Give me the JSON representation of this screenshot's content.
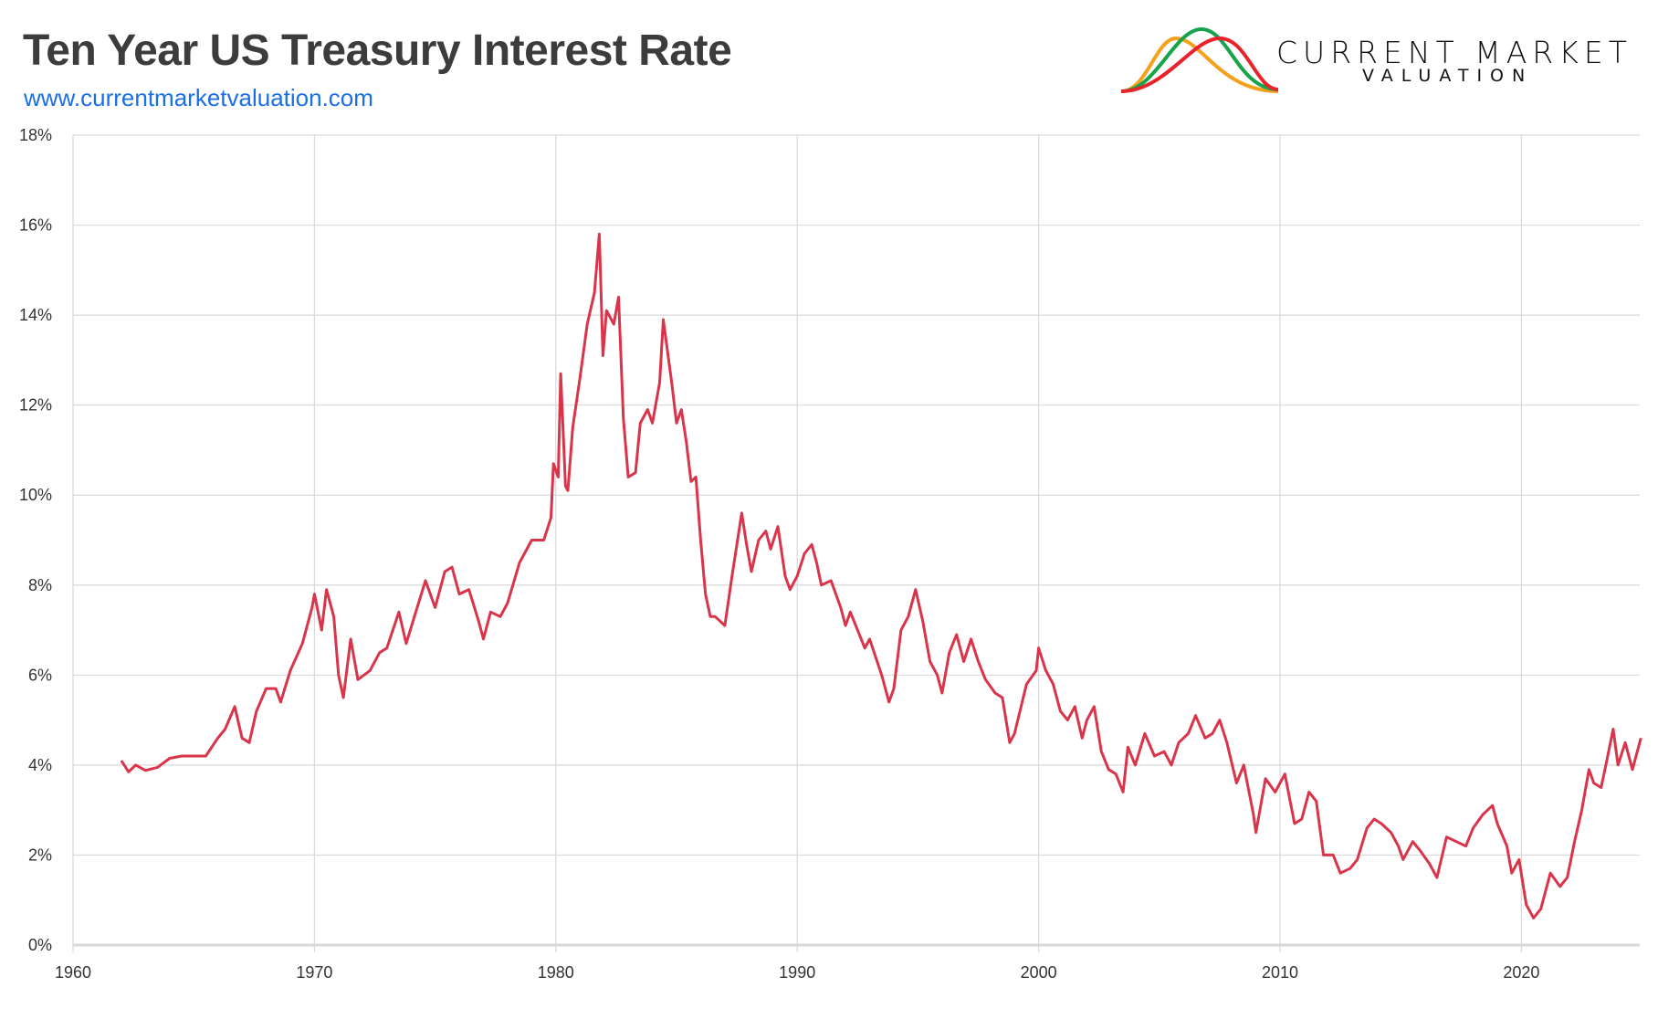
{
  "header": {
    "title": "Ten Year US Treasury Interest Rate",
    "url": "www.currentmarketvaluation.com"
  },
  "logo": {
    "name": "CURRENT MARKET",
    "subtitle": "VALUATION",
    "curve_colors": [
      "#f5a11c",
      "#16a34a",
      "#e8232b"
    ]
  },
  "chart_data": {
    "type": "line",
    "title": "Ten Year US Treasury Interest Rate",
    "xlabel": "",
    "ylabel": "",
    "xlim": [
      1960,
      2025
    ],
    "ylim": [
      0,
      18
    ],
    "x_ticks": [
      "1960",
      "1970",
      "1980",
      "1990",
      "2000",
      "2010",
      "2020"
    ],
    "y_ticks": [
      "0%",
      "2%",
      "4%",
      "6%",
      "8%",
      "10%",
      "12%",
      "14%",
      "16%",
      "18%"
    ],
    "grid": true,
    "legend": "none",
    "line_color": "#d9344a",
    "series": [
      {
        "points": [
          [
            1962.0,
            4.1
          ],
          [
            1962.3,
            3.85
          ],
          [
            1962.6,
            4.0
          ],
          [
            1963.0,
            3.88
          ],
          [
            1963.5,
            3.95
          ],
          [
            1964.0,
            4.15
          ],
          [
            1964.5,
            4.2
          ],
          [
            1965.0,
            4.2
          ],
          [
            1965.5,
            4.2
          ],
          [
            1966.0,
            4.6
          ],
          [
            1966.3,
            4.8
          ],
          [
            1966.7,
            5.3
          ],
          [
            1967.0,
            4.6
          ],
          [
            1967.3,
            4.5
          ],
          [
            1967.6,
            5.2
          ],
          [
            1968.0,
            5.7
          ],
          [
            1968.4,
            5.7
          ],
          [
            1968.6,
            5.4
          ],
          [
            1969.0,
            6.1
          ],
          [
            1969.5,
            6.7
          ],
          [
            1969.9,
            7.5
          ],
          [
            1970.0,
            7.8
          ],
          [
            1970.3,
            7.0
          ],
          [
            1970.5,
            7.9
          ],
          [
            1970.8,
            7.3
          ],
          [
            1971.0,
            6.0
          ],
          [
            1971.2,
            5.5
          ],
          [
            1971.5,
            6.8
          ],
          [
            1971.8,
            5.9
          ],
          [
            1972.3,
            6.1
          ],
          [
            1972.7,
            6.5
          ],
          [
            1973.0,
            6.6
          ],
          [
            1973.5,
            7.4
          ],
          [
            1973.8,
            6.7
          ],
          [
            1974.2,
            7.4
          ],
          [
            1974.6,
            8.1
          ],
          [
            1975.0,
            7.5
          ],
          [
            1975.4,
            8.3
          ],
          [
            1975.7,
            8.4
          ],
          [
            1976.0,
            7.8
          ],
          [
            1976.4,
            7.9
          ],
          [
            1976.8,
            7.2
          ],
          [
            1977.0,
            6.8
          ],
          [
            1977.3,
            7.4
          ],
          [
            1977.7,
            7.3
          ],
          [
            1978.0,
            7.6
          ],
          [
            1978.5,
            8.5
          ],
          [
            1979.0,
            9.0
          ],
          [
            1979.5,
            9.0
          ],
          [
            1979.8,
            9.5
          ],
          [
            1979.9,
            10.7
          ],
          [
            1980.1,
            10.4
          ],
          [
            1980.2,
            12.7
          ],
          [
            1980.4,
            10.2
          ],
          [
            1980.5,
            10.1
          ],
          [
            1980.7,
            11.5
          ],
          [
            1981.0,
            12.6
          ],
          [
            1981.3,
            13.8
          ],
          [
            1981.6,
            14.5
          ],
          [
            1981.8,
            15.8
          ],
          [
            1981.95,
            13.1
          ],
          [
            1982.1,
            14.1
          ],
          [
            1982.4,
            13.8
          ],
          [
            1982.6,
            14.4
          ],
          [
            1982.8,
            11.7
          ],
          [
            1983.0,
            10.4
          ],
          [
            1983.3,
            10.5
          ],
          [
            1983.5,
            11.6
          ],
          [
            1983.8,
            11.9
          ],
          [
            1984.0,
            11.6
          ],
          [
            1984.3,
            12.5
          ],
          [
            1984.45,
            13.9
          ],
          [
            1984.8,
            12.5
          ],
          [
            1985.0,
            11.6
          ],
          [
            1985.2,
            11.9
          ],
          [
            1985.4,
            11.2
          ],
          [
            1985.6,
            10.3
          ],
          [
            1985.8,
            10.4
          ],
          [
            1986.0,
            9.0
          ],
          [
            1986.2,
            7.8
          ],
          [
            1986.4,
            7.3
          ],
          [
            1986.6,
            7.3
          ],
          [
            1986.8,
            7.2
          ],
          [
            1987.0,
            7.1
          ],
          [
            1987.3,
            8.2
          ],
          [
            1987.7,
            9.6
          ],
          [
            1987.9,
            8.9
          ],
          [
            1988.1,
            8.3
          ],
          [
            1988.4,
            9.0
          ],
          [
            1988.7,
            9.2
          ],
          [
            1988.9,
            8.8
          ],
          [
            1989.2,
            9.3
          ],
          [
            1989.5,
            8.2
          ],
          [
            1989.7,
            7.9
          ],
          [
            1990.0,
            8.2
          ],
          [
            1990.3,
            8.7
          ],
          [
            1990.6,
            8.9
          ],
          [
            1990.8,
            8.5
          ],
          [
            1991.0,
            8.0
          ],
          [
            1991.4,
            8.1
          ],
          [
            1991.8,
            7.5
          ],
          [
            1992.0,
            7.1
          ],
          [
            1992.2,
            7.4
          ],
          [
            1992.5,
            7.0
          ],
          [
            1992.8,
            6.6
          ],
          [
            1993.0,
            6.8
          ],
          [
            1993.5,
            6.0
          ],
          [
            1993.8,
            5.4
          ],
          [
            1994.0,
            5.7
          ],
          [
            1994.3,
            7.0
          ],
          [
            1994.6,
            7.3
          ],
          [
            1994.9,
            7.9
          ],
          [
            1995.2,
            7.2
          ],
          [
            1995.5,
            6.3
          ],
          [
            1995.8,
            6.0
          ],
          [
            1996.0,
            5.6
          ],
          [
            1996.3,
            6.5
          ],
          [
            1996.6,
            6.9
          ],
          [
            1996.9,
            6.3
          ],
          [
            1997.2,
            6.8
          ],
          [
            1997.5,
            6.3
          ],
          [
            1997.8,
            5.9
          ],
          [
            1998.2,
            5.6
          ],
          [
            1998.5,
            5.5
          ],
          [
            1998.8,
            4.5
          ],
          [
            1999.0,
            4.7
          ],
          [
            1999.5,
            5.8
          ],
          [
            1999.9,
            6.1
          ],
          [
            2000.0,
            6.6
          ],
          [
            2000.3,
            6.1
          ],
          [
            2000.6,
            5.8
          ],
          [
            2000.9,
            5.2
          ],
          [
            2001.2,
            5.0
          ],
          [
            2001.5,
            5.3
          ],
          [
            2001.8,
            4.6
          ],
          [
            2002.0,
            5.0
          ],
          [
            2002.3,
            5.3
          ],
          [
            2002.6,
            4.3
          ],
          [
            2002.9,
            3.9
          ],
          [
            2003.2,
            3.8
          ],
          [
            2003.5,
            3.4
          ],
          [
            2003.7,
            4.4
          ],
          [
            2004.0,
            4.0
          ],
          [
            2004.4,
            4.7
          ],
          [
            2004.8,
            4.2
          ],
          [
            2005.2,
            4.3
          ],
          [
            2005.5,
            4.0
          ],
          [
            2005.8,
            4.5
          ],
          [
            2006.2,
            4.7
          ],
          [
            2006.5,
            5.1
          ],
          [
            2006.9,
            4.6
          ],
          [
            2007.2,
            4.7
          ],
          [
            2007.5,
            5.0
          ],
          [
            2007.8,
            4.5
          ],
          [
            2008.2,
            3.6
          ],
          [
            2008.5,
            4.0
          ],
          [
            2008.9,
            2.9
          ],
          [
            2009.0,
            2.5
          ],
          [
            2009.4,
            3.7
          ],
          [
            2009.8,
            3.4
          ],
          [
            2010.2,
            3.8
          ],
          [
            2010.6,
            2.7
          ],
          [
            2010.9,
            2.8
          ],
          [
            2011.2,
            3.4
          ],
          [
            2011.5,
            3.2
          ],
          [
            2011.8,
            2.0
          ],
          [
            2012.2,
            2.0
          ],
          [
            2012.5,
            1.6
          ],
          [
            2012.9,
            1.7
          ],
          [
            2013.2,
            1.9
          ],
          [
            2013.6,
            2.6
          ],
          [
            2013.9,
            2.8
          ],
          [
            2014.2,
            2.7
          ],
          [
            2014.6,
            2.5
          ],
          [
            2014.9,
            2.2
          ],
          [
            2015.1,
            1.9
          ],
          [
            2015.5,
            2.3
          ],
          [
            2015.8,
            2.1
          ],
          [
            2016.2,
            1.8
          ],
          [
            2016.5,
            1.5
          ],
          [
            2016.9,
            2.4
          ],
          [
            2017.3,
            2.3
          ],
          [
            2017.7,
            2.2
          ],
          [
            2018.0,
            2.6
          ],
          [
            2018.4,
            2.9
          ],
          [
            2018.8,
            3.1
          ],
          [
            2019.0,
            2.7
          ],
          [
            2019.4,
            2.2
          ],
          [
            2019.6,
            1.6
          ],
          [
            2019.9,
            1.9
          ],
          [
            2020.2,
            0.9
          ],
          [
            2020.5,
            0.6
          ],
          [
            2020.8,
            0.8
          ],
          [
            2021.2,
            1.6
          ],
          [
            2021.6,
            1.3
          ],
          [
            2021.9,
            1.5
          ],
          [
            2022.2,
            2.3
          ],
          [
            2022.5,
            3.0
          ],
          [
            2022.8,
            3.9
          ],
          [
            2023.0,
            3.6
          ],
          [
            2023.3,
            3.5
          ],
          [
            2023.5,
            4.0
          ],
          [
            2023.8,
            4.8
          ],
          [
            2024.0,
            4.0
          ],
          [
            2024.3,
            4.5
          ],
          [
            2024.6,
            3.9
          ],
          [
            2024.8,
            4.3
          ],
          [
            2024.95,
            4.6
          ]
        ]
      }
    ]
  }
}
